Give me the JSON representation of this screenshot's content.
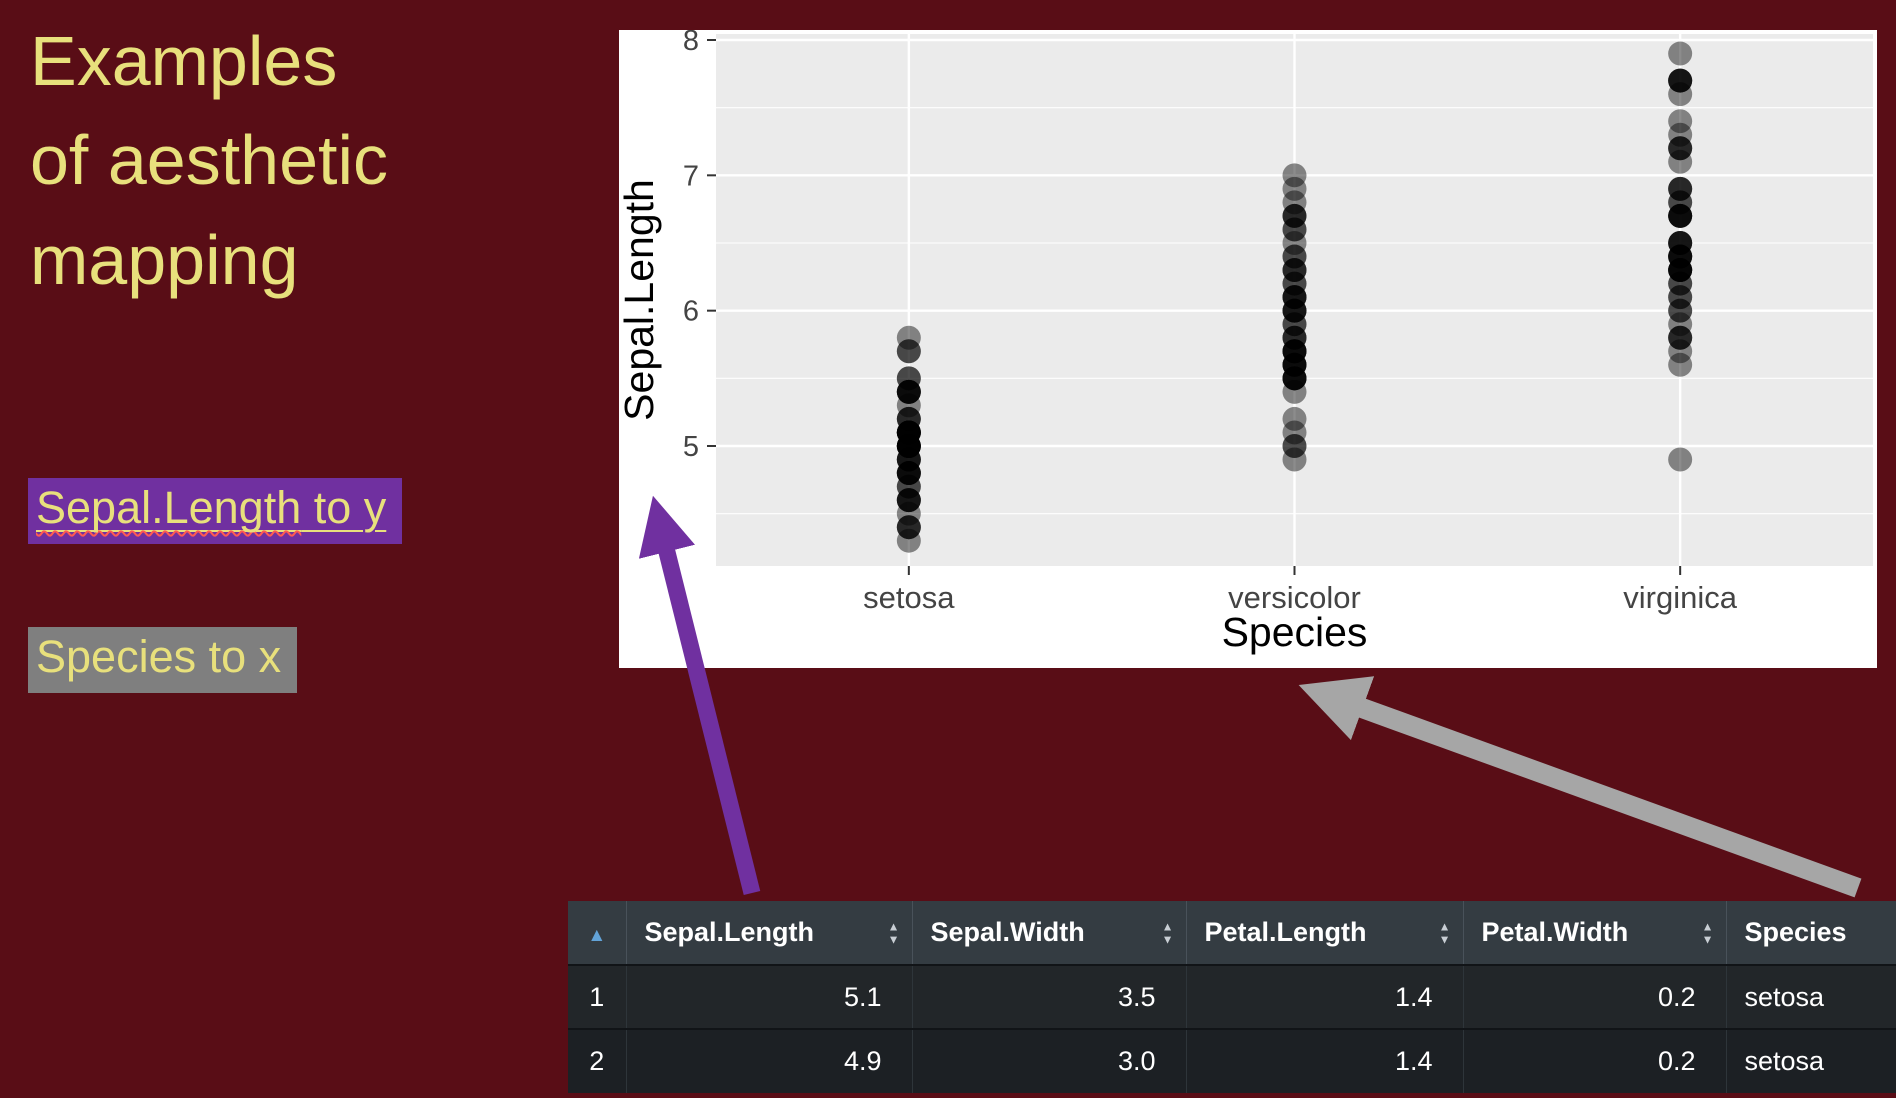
{
  "slide": {
    "bg": "#590d16",
    "title": {
      "line1": "Examples",
      "line2": "of aesthetic",
      "line3": "mapping",
      "color": "#e8e07c"
    },
    "labels": {
      "map_y": {
        "text_main": "Sepal.Length",
        "text_rest": " to y",
        "bg": "#7030a0",
        "text_color": "#e8e07c"
      },
      "map_x": {
        "text": "Species to x",
        "bg": "#7f7f7f",
        "text_color": "#e8e07c"
      }
    }
  },
  "chart_data": {
    "type": "scatter",
    "title": "",
    "xlabel": "Species",
    "ylabel": "Sepal.Length",
    "categories": [
      "setosa",
      "versicolor",
      "virginica"
    ],
    "yticks": [
      5,
      6,
      7,
      8
    ],
    "yminor": [
      4.5,
      5.5,
      6.5,
      7.5
    ],
    "ylim": [
      4.1,
      8.05
    ],
    "grid": true,
    "legend": "none",
    "panel_bg": "#ebebeb",
    "grid_color": "#ffffff",
    "point_color": "#000000",
    "point_opacity": 0.45,
    "tick_label_color": "#444444",
    "axis_title_color": "#000000",
    "series": [
      {
        "name": "setosa",
        "values": [
          5.1,
          4.9,
          4.7,
          4.6,
          5.0,
          5.4,
          4.6,
          5.0,
          4.4,
          4.9,
          5.4,
          4.8,
          4.8,
          4.3,
          5.8,
          5.7,
          5.4,
          5.1,
          5.7,
          5.1,
          5.4,
          5.1,
          4.6,
          5.1,
          4.8,
          5.0,
          5.0,
          5.2,
          5.2,
          4.7,
          4.8,
          5.4,
          5.2,
          5.5,
          4.9,
          5.0,
          5.5,
          4.9,
          4.4,
          5.1,
          5.0,
          4.5,
          4.4,
          5.0,
          5.1,
          4.8,
          5.1,
          4.6,
          5.3,
          5.0
        ]
      },
      {
        "name": "versicolor",
        "values": [
          7.0,
          6.4,
          6.9,
          5.5,
          6.5,
          5.7,
          6.3,
          4.9,
          6.6,
          5.2,
          5.0,
          5.9,
          6.0,
          6.1,
          5.6,
          6.7,
          5.6,
          5.8,
          6.2,
          5.6,
          5.9,
          6.1,
          6.3,
          6.1,
          6.4,
          6.6,
          6.8,
          6.7,
          6.0,
          5.7,
          5.5,
          5.5,
          5.8,
          6.0,
          5.4,
          6.0,
          6.7,
          6.3,
          5.6,
          5.5,
          5.5,
          6.1,
          5.8,
          5.0,
          5.6,
          5.7,
          5.7,
          6.2,
          5.1,
          5.7
        ]
      },
      {
        "name": "virginica",
        "values": [
          6.3,
          5.8,
          7.1,
          6.3,
          6.5,
          7.6,
          4.9,
          7.3,
          6.7,
          7.2,
          6.5,
          6.4,
          6.8,
          5.7,
          5.8,
          6.4,
          6.5,
          7.7,
          7.7,
          6.0,
          6.9,
          5.6,
          7.7,
          6.3,
          6.7,
          7.2,
          6.2,
          6.1,
          6.4,
          7.2,
          7.4,
          7.9,
          6.4,
          6.3,
          6.1,
          7.7,
          6.3,
          6.4,
          6.0,
          6.9,
          6.7,
          6.9,
          5.8,
          6.8,
          6.7,
          6.7,
          6.3,
          6.5,
          6.2,
          5.9
        ]
      }
    ]
  },
  "annotations": {
    "arrow_y_color": "#7030a0",
    "arrow_x_color": "#a6a6a6"
  },
  "table": {
    "sort_asc_glyph": "▲",
    "sort_up_glyph": "▲",
    "sort_down_glyph": "▼",
    "headers": [
      "Sepal.Length",
      "Sepal.Width",
      "Petal.Length",
      "Petal.Width",
      "Species"
    ],
    "rows": [
      {
        "n": "1",
        "cells": [
          "5.1",
          "3.5",
          "1.4",
          "0.2",
          "setosa"
        ]
      },
      {
        "n": "2",
        "cells": [
          "4.9",
          "3.0",
          "1.4",
          "0.2",
          "setosa"
        ]
      }
    ]
  }
}
